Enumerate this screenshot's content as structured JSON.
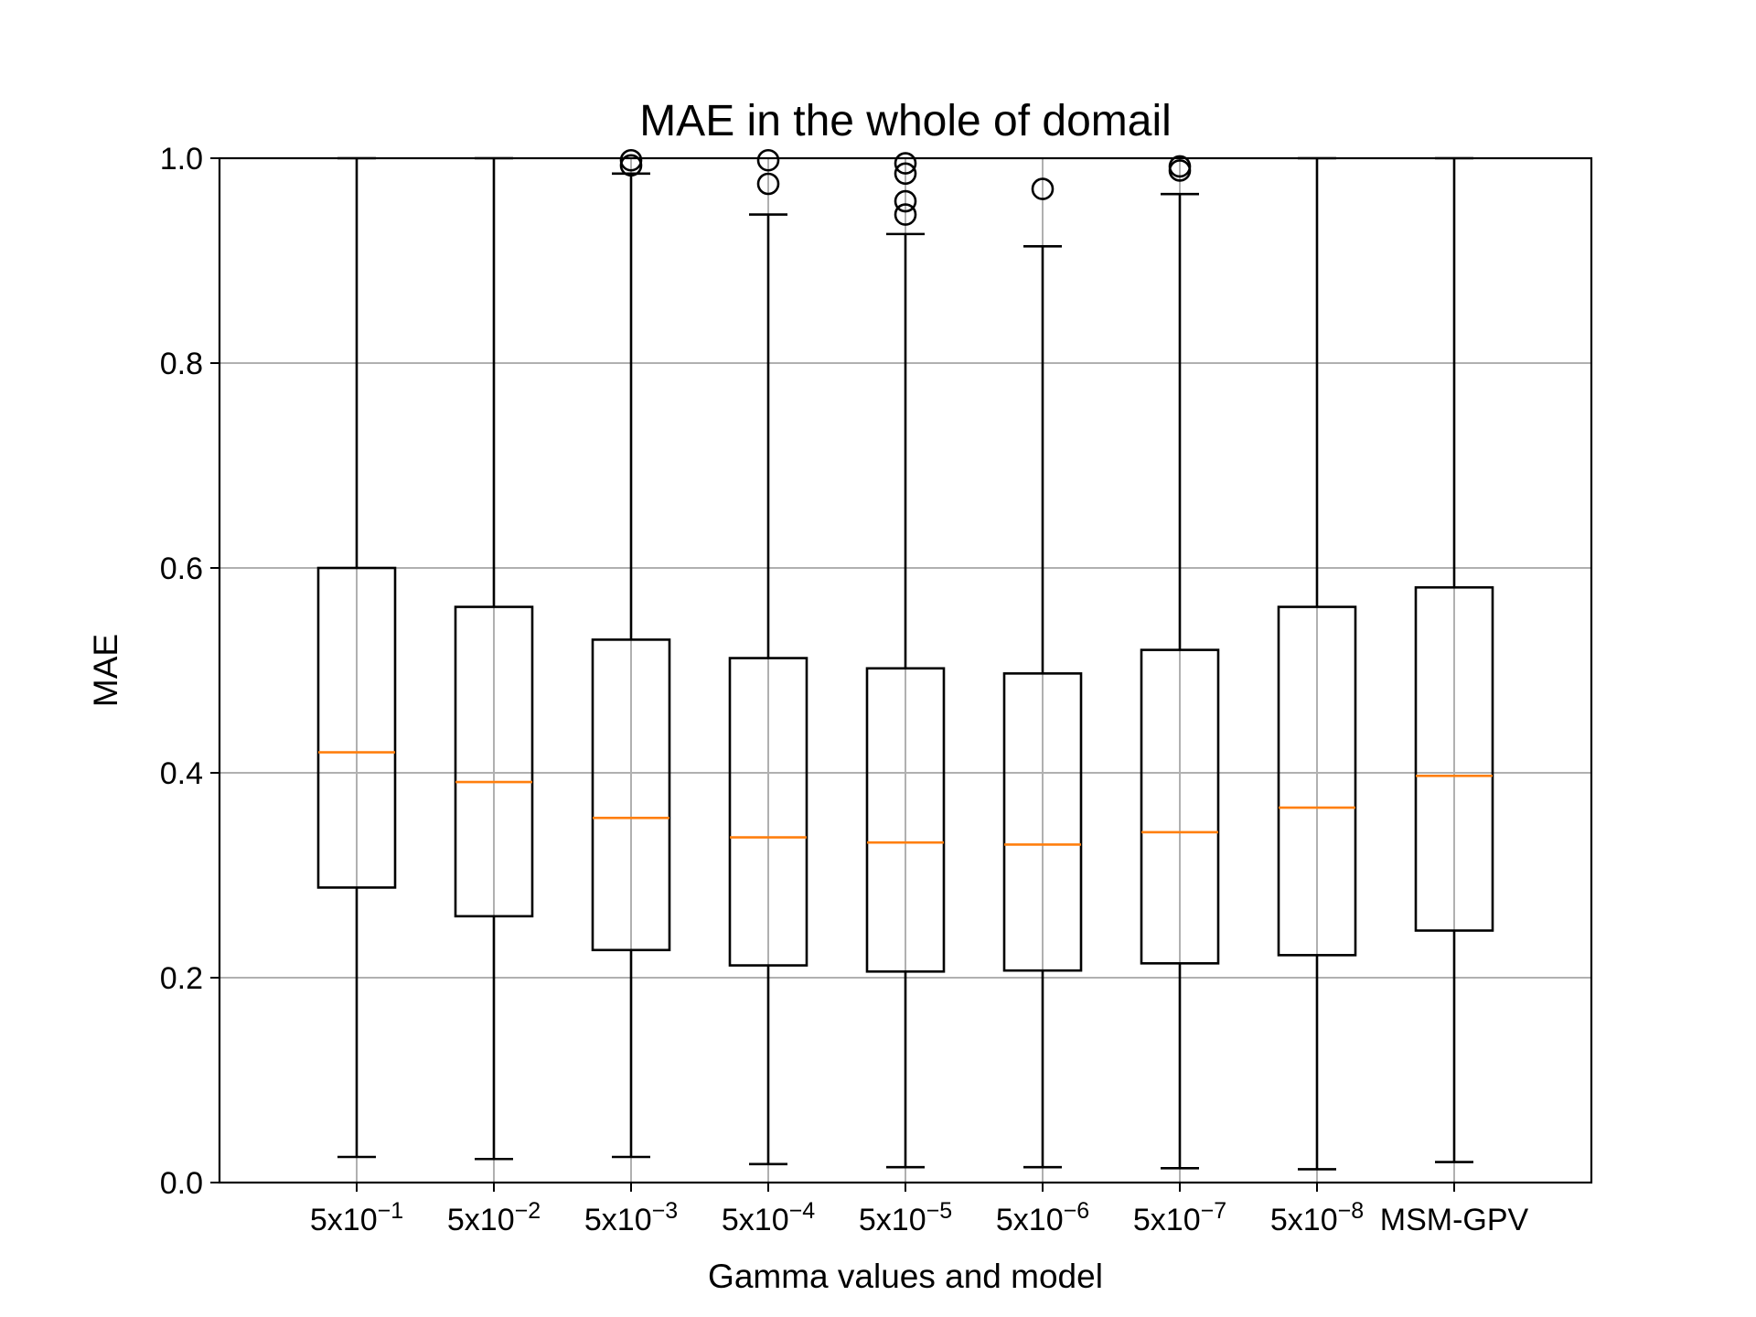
{
  "chart_data": {
    "type": "box",
    "title": "MAE in the whole of domail",
    "xlabel": "Gamma values and model",
    "ylabel": "MAE",
    "ylim": [
      0.0,
      1.0
    ],
    "yticks": [
      "0.0",
      "0.2",
      "0.4",
      "0.6",
      "0.8",
      "1.0"
    ],
    "grid": true,
    "categories": [
      {
        "base": "5x10",
        "exp": "−1"
      },
      {
        "base": "5x10",
        "exp": "−2"
      },
      {
        "base": "5x10",
        "exp": "−3"
      },
      {
        "base": "5x10",
        "exp": "−4"
      },
      {
        "base": "5x10",
        "exp": "−5"
      },
      {
        "base": "5x10",
        "exp": "−6"
      },
      {
        "base": "5x10",
        "exp": "−7"
      },
      {
        "base": "5x10",
        "exp": "−8"
      },
      {
        "base": "MSM-GPV",
        "exp": ""
      }
    ],
    "boxes": [
      {
        "whislo": 0.025,
        "q1": 0.288,
        "med": 0.42,
        "q3": 0.6,
        "whishi": 1.0,
        "fliers": []
      },
      {
        "whislo": 0.023,
        "q1": 0.26,
        "med": 0.391,
        "q3": 0.562,
        "whishi": 1.0,
        "fliers": []
      },
      {
        "whislo": 0.025,
        "q1": 0.227,
        "med": 0.356,
        "q3": 0.53,
        "whishi": 0.985,
        "fliers": [
          0.993,
          0.998
        ]
      },
      {
        "whislo": 0.018,
        "q1": 0.212,
        "med": 0.337,
        "q3": 0.512,
        "whishi": 0.945,
        "fliers": [
          0.975,
          0.998
        ]
      },
      {
        "whislo": 0.015,
        "q1": 0.206,
        "med": 0.332,
        "q3": 0.502,
        "whishi": 0.926,
        "fliers": [
          0.945,
          0.958,
          0.985,
          0.995
        ]
      },
      {
        "whislo": 0.015,
        "q1": 0.207,
        "med": 0.33,
        "q3": 0.497,
        "whishi": 0.914,
        "fliers": [
          0.97
        ]
      },
      {
        "whislo": 0.014,
        "q1": 0.214,
        "med": 0.342,
        "q3": 0.52,
        "whishi": 0.965,
        "fliers": [
          0.988,
          0.992
        ]
      },
      {
        "whislo": 0.013,
        "q1": 0.222,
        "med": 0.366,
        "q3": 0.562,
        "whishi": 1.0,
        "fliers": []
      },
      {
        "whislo": 0.02,
        "q1": 0.246,
        "med": 0.397,
        "q3": 0.581,
        "whishi": 1.0,
        "fliers": []
      }
    ],
    "colors": {
      "box": "#000000",
      "median": "#ff7f0e",
      "grid": "#b0b0b0"
    }
  }
}
